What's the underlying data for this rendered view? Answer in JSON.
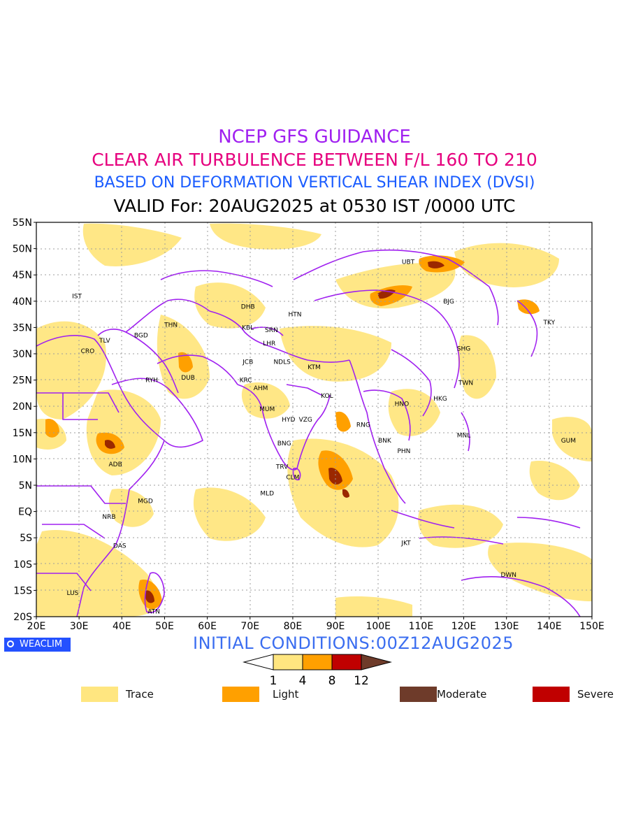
{
  "header": {
    "line1": "NCEP GFS GUIDANCE",
    "line2": "CLEAR AIR TURBULENCE BETWEEN F/L 160 TO 210",
    "line3": "BASED ON DEFORMATION VERTICAL SHEAR INDEX (DVSI)",
    "line4": "VALID For: 20AUG2025 at 0530 IST /0000 UTC"
  },
  "map": {
    "lon_ticks": [
      "20E",
      "30E",
      "40E",
      "50E",
      "60E",
      "70E",
      "80E",
      "90E",
      "100E",
      "110E",
      "120E",
      "130E",
      "140E",
      "150E"
    ],
    "lat_ticks": [
      "55N",
      "50N",
      "45N",
      "40N",
      "35N",
      "30N",
      "25N",
      "20N",
      "15N",
      "10N",
      "5N",
      "EQ",
      "5S",
      "10S",
      "15S",
      "20S"
    ],
    "stations": [
      {
        "code": "IST",
        "lon": 29.5,
        "lat": 41
      },
      {
        "code": "TLV",
        "lon": 36,
        "lat": 32.5
      },
      {
        "code": "CRO",
        "lon": 32,
        "lat": 30.5
      },
      {
        "code": "BGD",
        "lon": 44.5,
        "lat": 33.5
      },
      {
        "code": "THN",
        "lon": 51.5,
        "lat": 35.5
      },
      {
        "code": "RYH",
        "lon": 47,
        "lat": 25
      },
      {
        "code": "DUB",
        "lon": 55.5,
        "lat": 25.5
      },
      {
        "code": "ADB",
        "lon": 38.5,
        "lat": 9
      },
      {
        "code": "MGD",
        "lon": 45.5,
        "lat": 2
      },
      {
        "code": "NRB",
        "lon": 37,
        "lat": -1
      },
      {
        "code": "DAS",
        "lon": 39.5,
        "lat": -6.5
      },
      {
        "code": "LUS",
        "lon": 28.5,
        "lat": -15.5
      },
      {
        "code": "ATN",
        "lon": 47.5,
        "lat": -19
      },
      {
        "code": "DHB",
        "lon": 69.5,
        "lat": 39
      },
      {
        "code": "HTN",
        "lon": 80.5,
        "lat": 37.5
      },
      {
        "code": "KBL",
        "lon": 69.5,
        "lat": 35
      },
      {
        "code": "SRN",
        "lon": 75,
        "lat": 34.5
      },
      {
        "code": "LHR",
        "lon": 74.5,
        "lat": 32
      },
      {
        "code": "JCB",
        "lon": 69.5,
        "lat": 28.5
      },
      {
        "code": "NDLS",
        "lon": 77.5,
        "lat": 28.5
      },
      {
        "code": "KRC",
        "lon": 69,
        "lat": 25
      },
      {
        "code": "AHM",
        "lon": 72.5,
        "lat": 23.5
      },
      {
        "code": "KTM",
        "lon": 85,
        "lat": 27.5
      },
      {
        "code": "KOL",
        "lon": 88,
        "lat": 22
      },
      {
        "code": "MUM",
        "lon": 74,
        "lat": 19.5
      },
      {
        "code": "HYD",
        "lon": 79,
        "lat": 17.5
      },
      {
        "code": "VZG",
        "lon": 83,
        "lat": 17.5
      },
      {
        "code": "BNG",
        "lon": 78,
        "lat": 13
      },
      {
        "code": "TRV",
        "lon": 77.5,
        "lat": 8.5
      },
      {
        "code": "CLM",
        "lon": 80,
        "lat": 6.5
      },
      {
        "code": "MLD",
        "lon": 74,
        "lat": 3.5
      },
      {
        "code": "RNG",
        "lon": 96.5,
        "lat": 16.5
      },
      {
        "code": "HNO",
        "lon": 105.5,
        "lat": 20.5
      },
      {
        "code": "BNK",
        "lon": 101.5,
        "lat": 13.5
      },
      {
        "code": "PHN",
        "lon": 106,
        "lat": 11.5
      },
      {
        "code": "HKG",
        "lon": 114.5,
        "lat": 21.5
      },
      {
        "code": "UBT",
        "lon": 107,
        "lat": 47.5
      },
      {
        "code": "BJG",
        "lon": 116.5,
        "lat": 40
      },
      {
        "code": "SHG",
        "lon": 120,
        "lat": 31
      },
      {
        "code": "TWN",
        "lon": 120.5,
        "lat": 24.5
      },
      {
        "code": "MNL",
        "lon": 120,
        "lat": 14.5
      },
      {
        "code": "JKT",
        "lon": 106.5,
        "lat": -6
      },
      {
        "code": "DWN",
        "lon": 130.5,
        "lat": -12
      },
      {
        "code": "TKY",
        "lon": 140,
        "lat": 36
      },
      {
        "code": "GUM",
        "lon": 144.5,
        "lat": 13.5
      }
    ],
    "colors": {
      "trace": "#ffe680",
      "light": "#ffa000",
      "moderate": "#9b2800",
      "severe": "#c00000",
      "border": "#a020f0",
      "grid": "#9c9c9c"
    }
  },
  "footer": {
    "brand": "WEACLIM",
    "initial_conditions": "INITIAL CONDITIONS:00Z12AUG2025"
  },
  "colorbar": {
    "labels": [
      "1",
      "4",
      "8",
      "12"
    ],
    "colors": [
      "#ffe680",
      "#ffa000",
      "#c00000",
      "#6e3b2a"
    ]
  },
  "legend": [
    {
      "label": "Trace",
      "color": "#ffe680"
    },
    {
      "label": "Light",
      "color": "#ffa000"
    },
    {
      "label": "Moderate",
      "color": "#6e3b2a"
    },
    {
      "label": "Severe",
      "color": "#c00000"
    }
  ]
}
